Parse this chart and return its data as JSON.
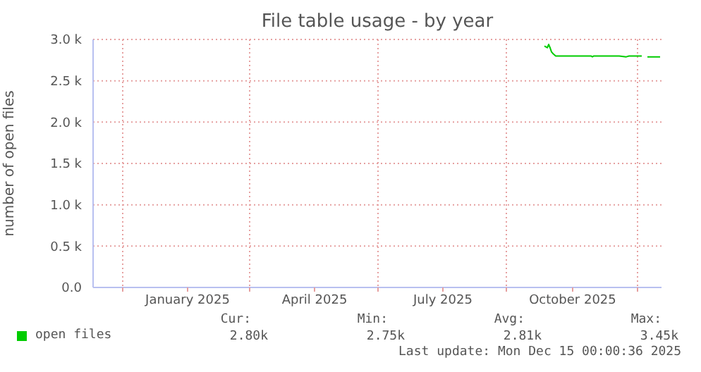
{
  "chart_data": {
    "type": "line",
    "title": "File table usage - by year",
    "ylabel": "number of open files",
    "x": [
      "2025-09-23",
      "2025-09-25",
      "2025-09-26",
      "2025-09-27",
      "2025-09-28",
      "2025-09-29",
      "2025-10-01",
      "2025-10-26",
      "2025-10-27",
      "2025-10-28",
      "2025-11-15",
      "2025-11-20",
      "2025-11-22",
      "2025-12-01",
      "2025-12-02",
      "2025-12-05",
      "2025-12-14"
    ],
    "series": [
      {
        "name": "open files",
        "color": "#00cc00",
        "values": [
          2920,
          2900,
          2940,
          2900,
          2850,
          2830,
          2800,
          2800,
          2790,
          2800,
          2800,
          2790,
          2800,
          2800,
          null,
          2790,
          2790
        ]
      }
    ],
    "xlim": [
      "2024-11-07",
      "2025-12-15"
    ],
    "xticks": [
      {
        "value": "2024-11-28",
        "label": null
      },
      {
        "value": "2025-01-13",
        "label": "January 2025"
      },
      {
        "value": "2025-02-26",
        "label": null
      },
      {
        "value": "2025-04-13",
        "label": "April 2025"
      },
      {
        "value": "2025-05-28",
        "label": null
      },
      {
        "value": "2025-07-13",
        "label": "July 2025"
      },
      {
        "value": "2025-08-27",
        "label": null
      },
      {
        "value": "2025-10-13",
        "label": "October 2025"
      },
      {
        "value": "2025-11-28",
        "label": null
      }
    ],
    "ylim": [
      0,
      3000
    ],
    "yticks": [
      {
        "value": 0,
        "label": "0.0"
      },
      {
        "value": 500,
        "label": "0.5 k"
      },
      {
        "value": 1000,
        "label": "1.0 k"
      },
      {
        "value": 1500,
        "label": "1.5 k"
      },
      {
        "value": 2000,
        "label": "2.0 k"
      },
      {
        "value": 2500,
        "label": "2.5 k"
      },
      {
        "value": 3000,
        "label": "3.0 k"
      }
    ],
    "grid": true,
    "legend": "bottom left",
    "marker": "none",
    "line_style": "solid",
    "annotations": [
      "Cur:",
      "2.80k",
      "Min:",
      "2.75k",
      "Avg:",
      "2.81k",
      "Max:",
      "3.45k",
      "Last update: Mon Dec 15 00:00:36 2025"
    ]
  }
}
